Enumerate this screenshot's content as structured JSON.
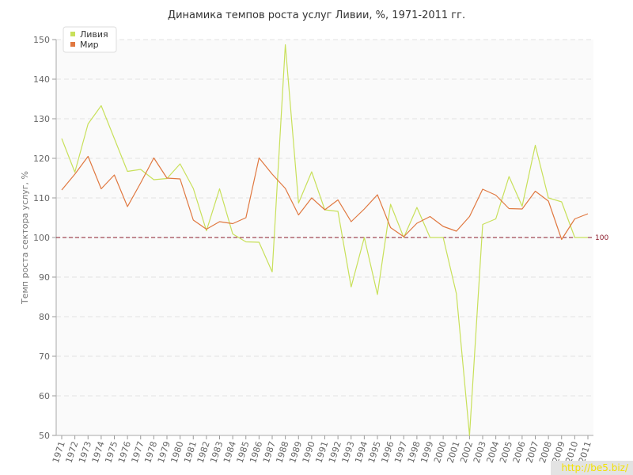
{
  "chart_data": {
    "type": "line",
    "title": "Динамика темпов роста услуг Ливии, %, 1971-2011 гг.",
    "xlabel": "",
    "ylabel": "Темп роста сектора услуг, %",
    "ylim": [
      50,
      150
    ],
    "yticks": [
      50,
      60,
      70,
      80,
      90,
      100,
      110,
      120,
      130,
      140,
      150
    ],
    "x": [
      "1971",
      "1972",
      "1973",
      "1974",
      "1975",
      "1976",
      "1977",
      "1978",
      "1979",
      "1980",
      "1981",
      "1982",
      "1983",
      "1984",
      "1985",
      "1986",
      "1987",
      "1988",
      "1989",
      "1990",
      "1991",
      "1992",
      "1993",
      "1994",
      "1995",
      "1996",
      "1997",
      "1998",
      "1999",
      "2000",
      "2001",
      "2002",
      "2003",
      "2004",
      "2005",
      "2006",
      "2007",
      "2008",
      "2009",
      "2010",
      "2011"
    ],
    "series": [
      {
        "name": "Ливия",
        "color": "#c8e05a",
        "values": [
          125.0,
          116.5,
          128.7,
          133.3,
          125.0,
          116.7,
          117.2,
          114.6,
          114.9,
          118.6,
          112.4,
          101.7,
          112.3,
          100.9,
          98.9,
          98.8,
          91.3,
          148.7,
          108.7,
          116.6,
          107.0,
          106.6,
          87.5,
          100.0,
          85.6,
          108.4,
          100.0,
          107.6,
          100.0,
          100.0,
          85.8,
          50.0,
          103.3,
          104.7,
          115.4,
          107.9,
          123.3,
          110.0,
          109.0,
          100.0,
          100.0
        ]
      },
      {
        "name": "Мир",
        "color": "#e07840",
        "values": [
          112.0,
          116.0,
          120.5,
          112.3,
          115.8,
          107.8,
          113.8,
          120.1,
          115.0,
          114.8,
          104.4,
          102.1,
          104.0,
          103.5,
          105.0,
          120.1,
          116.0,
          112.4,
          105.7,
          110.0,
          107.0,
          109.5,
          104.0,
          107.2,
          110.8,
          102.5,
          100.2,
          103.6,
          105.3,
          102.8,
          101.6,
          105.3,
          112.2,
          110.7,
          107.3,
          107.2,
          111.7,
          109.2,
          99.5,
          104.7,
          106.0
        ]
      }
    ],
    "reference_line": {
      "value": 100,
      "label": "100",
      "color": "#8b1a2b"
    },
    "grid": true,
    "legend": "top-left"
  },
  "watermark": "http://be5.biz/"
}
